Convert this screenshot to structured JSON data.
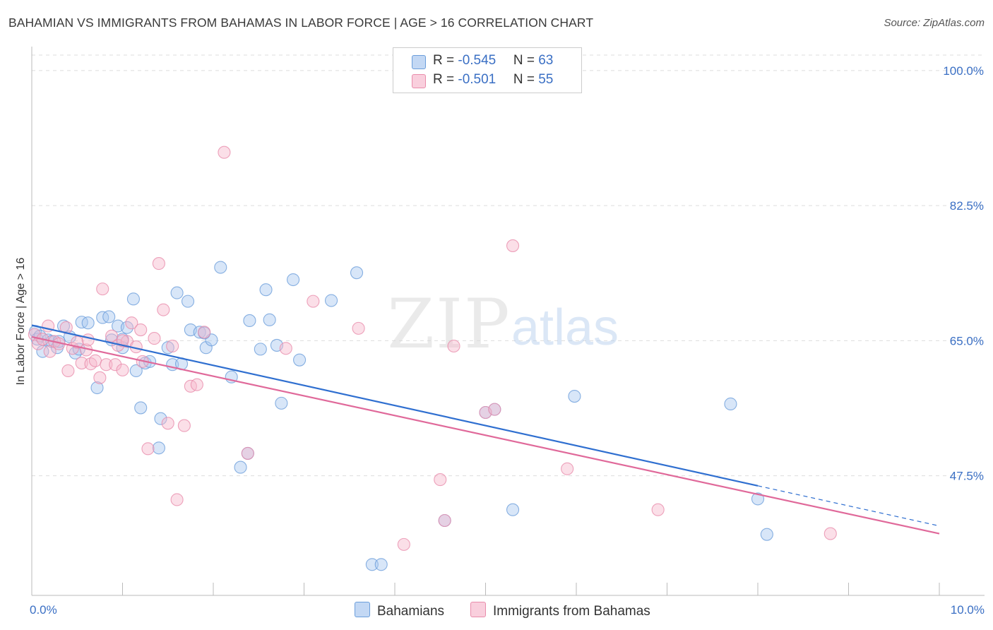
{
  "header": {
    "title": "BAHAMIAN VS IMMIGRANTS FROM BAHAMAS IN LABOR FORCE | AGE > 16 CORRELATION CHART",
    "source": "Source: ZipAtlas.com"
  },
  "watermark": {
    "zip": "ZIP",
    "atlas": "atlas"
  },
  "stats": {
    "series1": {
      "r_label": "R = ",
      "r_value": "-0.545",
      "n_label": "N = ",
      "n_value": "63"
    },
    "series2": {
      "r_label": "R = ",
      "r_value": "-0.501",
      "n_label": "N = ",
      "n_value": "55"
    }
  },
  "legend": {
    "series1": "Bahamians",
    "series2": "Immigrants from Bahamas"
  },
  "colors": {
    "blue_fill": "#a9c8f0",
    "blue_stroke": "#6b9edb",
    "blue_line": "#2f6fd0",
    "pink_fill": "#f6b9cc",
    "pink_stroke": "#e98cab",
    "pink_line": "#e0699a",
    "tick_text": "#3a6fc4",
    "grid": "#dddddd"
  },
  "chart_data": {
    "type": "scatter",
    "title": "BAHAMIAN VS IMMIGRANTS FROM BAHAMAS IN LABOR FORCE | AGE > 16 CORRELATION CHART",
    "xlabel": "",
    "ylabel": "In Labor Force | Age > 16",
    "xlim": [
      0,
      10
    ],
    "ylim": [
      32,
      102
    ],
    "x_tick_labels": [
      "0.0%",
      "10.0%"
    ],
    "y_ticks": [
      47.5,
      65.0,
      82.5,
      100.0
    ],
    "y_tick_labels": [
      "47.5%",
      "65.0%",
      "82.5%",
      "100.0%"
    ],
    "legend_position": "bottom",
    "series": [
      {
        "name": "Bahamians",
        "R": -0.545,
        "N": 63,
        "trend": {
          "x0": 0.0,
          "y0": 67.0,
          "x1": 8.0,
          "y1": 46.2,
          "dash_to_x": 10.0,
          "dash_to_y": 41.0
        },
        "points": [
          [
            0.04,
            66.2
          ],
          [
            0.06,
            65.2
          ],
          [
            0.09,
            65.6
          ],
          [
            0.12,
            63.6
          ],
          [
            0.18,
            65.1
          ],
          [
            0.22,
            64.9
          ],
          [
            0.28,
            64.1
          ],
          [
            0.35,
            66.9
          ],
          [
            0.42,
            65.5
          ],
          [
            0.48,
            63.4
          ],
          [
            0.52,
            63.9
          ],
          [
            0.55,
            67.4
          ],
          [
            0.62,
            67.3
          ],
          [
            0.72,
            58.9
          ],
          [
            0.78,
            68.0
          ],
          [
            0.85,
            68.1
          ],
          [
            0.88,
            65.1
          ],
          [
            0.95,
            66.9
          ],
          [
            1.0,
            64.1
          ],
          [
            1.05,
            66.7
          ],
          [
            1.12,
            70.4
          ],
          [
            1.15,
            61.1
          ],
          [
            1.2,
            56.3
          ],
          [
            1.25,
            62.1
          ],
          [
            1.3,
            62.3
          ],
          [
            1.4,
            51.1
          ],
          [
            1.42,
            54.9
          ],
          [
            1.5,
            64.1
          ],
          [
            1.55,
            61.9
          ],
          [
            1.6,
            71.2
          ],
          [
            1.65,
            62.0
          ],
          [
            1.72,
            70.1
          ],
          [
            1.75,
            66.4
          ],
          [
            1.85,
            66.1
          ],
          [
            1.92,
            64.1
          ],
          [
            1.98,
            65.1
          ],
          [
            2.08,
            74.5
          ],
          [
            2.2,
            60.3
          ],
          [
            2.3,
            48.6
          ],
          [
            2.38,
            50.4
          ],
          [
            2.4,
            67.6
          ],
          [
            2.52,
            63.9
          ],
          [
            2.58,
            71.6
          ],
          [
            2.62,
            67.7
          ],
          [
            2.75,
            56.9
          ],
          [
            2.88,
            72.9
          ],
          [
            2.95,
            62.5
          ],
          [
            3.3,
            70.2
          ],
          [
            3.58,
            73.8
          ],
          [
            3.75,
            36.0
          ],
          [
            3.85,
            36.0
          ],
          [
            4.55,
            41.7
          ],
          [
            5.0,
            55.7
          ],
          [
            5.1,
            56.1
          ],
          [
            5.3,
            43.1
          ],
          [
            5.98,
            57.8
          ],
          [
            7.7,
            56.8
          ],
          [
            8.0,
            44.5
          ],
          [
            8.1,
            39.9
          ],
          [
            1.9,
            66.0
          ],
          [
            0.3,
            64.9
          ],
          [
            1.0,
            65.2
          ],
          [
            2.7,
            64.4
          ]
        ]
      },
      {
        "name": "Immigrants from Bahamas",
        "R": -0.501,
        "N": 55,
        "trend": {
          "x0": 0.0,
          "y0": 65.5,
          "x1": 10.0,
          "y1": 40.0
        },
        "points": [
          [
            0.03,
            65.8
          ],
          [
            0.07,
            64.6
          ],
          [
            0.12,
            65.2
          ],
          [
            0.18,
            66.9
          ],
          [
            0.2,
            63.6
          ],
          [
            0.25,
            64.9
          ],
          [
            0.3,
            64.6
          ],
          [
            0.38,
            66.7
          ],
          [
            0.4,
            61.1
          ],
          [
            0.45,
            64.0
          ],
          [
            0.55,
            62.1
          ],
          [
            0.6,
            63.8
          ],
          [
            0.62,
            65.1
          ],
          [
            0.65,
            62.0
          ],
          [
            0.7,
            62.4
          ],
          [
            0.75,
            60.2
          ],
          [
            0.78,
            71.7
          ],
          [
            0.82,
            61.9
          ],
          [
            0.88,
            65.6
          ],
          [
            0.92,
            61.9
          ],
          [
            0.95,
            64.4
          ],
          [
            1.0,
            61.2
          ],
          [
            1.05,
            64.9
          ],
          [
            1.1,
            67.3
          ],
          [
            1.15,
            64.2
          ],
          [
            1.2,
            66.4
          ],
          [
            1.22,
            62.3
          ],
          [
            1.28,
            51.0
          ],
          [
            1.35,
            65.3
          ],
          [
            1.4,
            75.0
          ],
          [
            1.45,
            69.0
          ],
          [
            1.5,
            54.3
          ],
          [
            1.55,
            64.3
          ],
          [
            1.6,
            44.4
          ],
          [
            1.68,
            54.0
          ],
          [
            1.75,
            59.1
          ],
          [
            1.82,
            59.3
          ],
          [
            2.12,
            89.4
          ],
          [
            2.38,
            50.4
          ],
          [
            3.1,
            70.1
          ],
          [
            3.6,
            66.6
          ],
          [
            4.1,
            38.6
          ],
          [
            4.5,
            47.0
          ],
          [
            4.55,
            41.7
          ],
          [
            4.65,
            64.3
          ],
          [
            5.0,
            55.7
          ],
          [
            5.1,
            56.1
          ],
          [
            5.3,
            77.3
          ],
          [
            5.9,
            48.4
          ],
          [
            6.9,
            43.1
          ],
          [
            8.8,
            40.0
          ],
          [
            1.0,
            65.0
          ],
          [
            0.5,
            64.8
          ],
          [
            1.9,
            66.1
          ],
          [
            2.8,
            64.0
          ]
        ]
      }
    ]
  }
}
